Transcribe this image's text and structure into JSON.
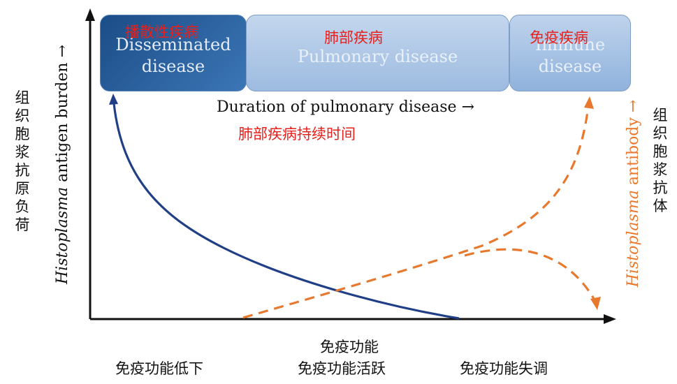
{
  "stages": {
    "disseminated": {
      "en_line1": "Disseminated",
      "en_line2": "disease",
      "cn": "播散性疾病"
    },
    "pulmonary": {
      "en": "Pulmonary disease",
      "cn": "肺部疾病"
    },
    "immune": {
      "en_line1": "Immune",
      "en_line2": "disease",
      "cn": "免疫疾病"
    }
  },
  "duration": {
    "en": "Duration of pulmonary disease",
    "arrow": "→",
    "cn": "肺部疾病持续时间"
  },
  "left_axis": {
    "italic": "Histoplasma",
    "rest": " antigen burden",
    "arrow": "→",
    "cn": [
      "组",
      "织",
      "胞",
      "浆",
      "抗",
      "原",
      "负",
      "荷"
    ]
  },
  "right_axis": {
    "italic": "Histoplasma",
    "rest": " antibody",
    "arrow": "→",
    "cn": [
      "组",
      "织",
      "胞",
      "浆",
      "抗",
      "体"
    ]
  },
  "bottom": {
    "low": "免疫功能低下",
    "active_line1": "免疫功能",
    "active_line2": "免疫功能活跃",
    "dysregulated": "免疫功能失调"
  },
  "colors": {
    "antigen_curve": "#213f86",
    "antibody_curve": "#e8782d",
    "axis": "#111111",
    "red_label": "#e8201c"
  }
}
